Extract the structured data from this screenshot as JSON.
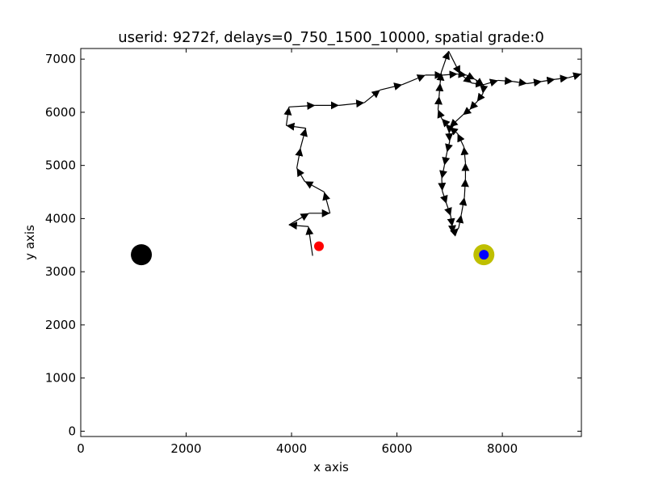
{
  "chart_data": {
    "type": "scatter",
    "title": "userid: 9272f, delays=0_750_1500_10000, spatial grade:0",
    "xlabel": "x axis",
    "ylabel": "y axis",
    "xlim": [
      0,
      9500
    ],
    "ylim": [
      7200,
      -100
    ],
    "y_inverted": true,
    "xticks": [
      0,
      2000,
      4000,
      6000,
      8000
    ],
    "yticks": [
      0,
      1000,
      2000,
      3000,
      4000,
      5000,
      6000,
      7000
    ],
    "grid": false,
    "legend": "none",
    "trajectory": {
      "color": "#000000",
      "arrowheads": true,
      "points": [
        [
          4400,
          3300
        ],
        [
          4320,
          3850
        ],
        [
          3950,
          3880
        ],
        [
          4330,
          4100
        ],
        [
          4730,
          4100
        ],
        [
          4620,
          4500
        ],
        [
          4250,
          4700
        ],
        [
          4100,
          4950
        ],
        [
          4170,
          5330
        ],
        [
          4270,
          5700
        ],
        [
          3900,
          5750
        ],
        [
          3950,
          6100
        ],
        [
          4450,
          6130
        ],
        [
          4900,
          6130
        ],
        [
          5380,
          6180
        ],
        [
          5680,
          6420
        ],
        [
          6100,
          6520
        ],
        [
          6540,
          6700
        ],
        [
          6870,
          6700
        ],
        [
          7150,
          6720
        ],
        [
          7320,
          6700
        ],
        [
          7480,
          6620
        ],
        [
          7650,
          6500
        ],
        [
          7630,
          6350
        ],
        [
          7520,
          6200
        ],
        [
          7380,
          6050
        ],
        [
          7250,
          5950
        ],
        [
          7000,
          5720
        ],
        [
          6990,
          5600
        ],
        [
          7000,
          5450
        ],
        [
          6950,
          5250
        ],
        [
          6900,
          5000
        ],
        [
          6850,
          4750
        ],
        [
          6860,
          4520
        ],
        [
          6940,
          4280
        ],
        [
          7020,
          4050
        ],
        [
          7050,
          3850
        ],
        [
          7060,
          3720
        ],
        [
          7170,
          3820
        ],
        [
          7220,
          4070
        ],
        [
          7280,
          4400
        ],
        [
          7300,
          4750
        ],
        [
          7300,
          5050
        ],
        [
          7270,
          5350
        ],
        [
          7150,
          5600
        ],
        [
          7000,
          5720
        ],
        [
          6850,
          5880
        ],
        [
          6780,
          6050
        ],
        [
          6800,
          6300
        ],
        [
          6820,
          6550
        ],
        [
          6840,
          6750
        ],
        [
          6980,
          7150
        ],
        [
          7200,
          6720
        ],
        [
          7420,
          6550
        ],
        [
          7650,
          6520
        ],
        [
          7920,
          6600
        ],
        [
          8200,
          6580
        ],
        [
          8470,
          6540
        ],
        [
          8750,
          6580
        ],
        [
          9000,
          6620
        ],
        [
          9250,
          6650
        ],
        [
          9500,
          6720
        ]
      ]
    },
    "markers": [
      {
        "name": "",
        "x": 1150,
        "y": 3320,
        "color": "#000000",
        "size": "large"
      },
      {
        "name": "",
        "x": 4520,
        "y": 3480,
        "color": "#ff0000",
        "size": "small"
      },
      {
        "name": "",
        "x": 7650,
        "y": 3320,
        "color": "#bfbf00",
        "size": "large"
      },
      {
        "name": "",
        "x": 7650,
        "y": 3320,
        "color": "#0000ff",
        "size": "small"
      }
    ]
  }
}
